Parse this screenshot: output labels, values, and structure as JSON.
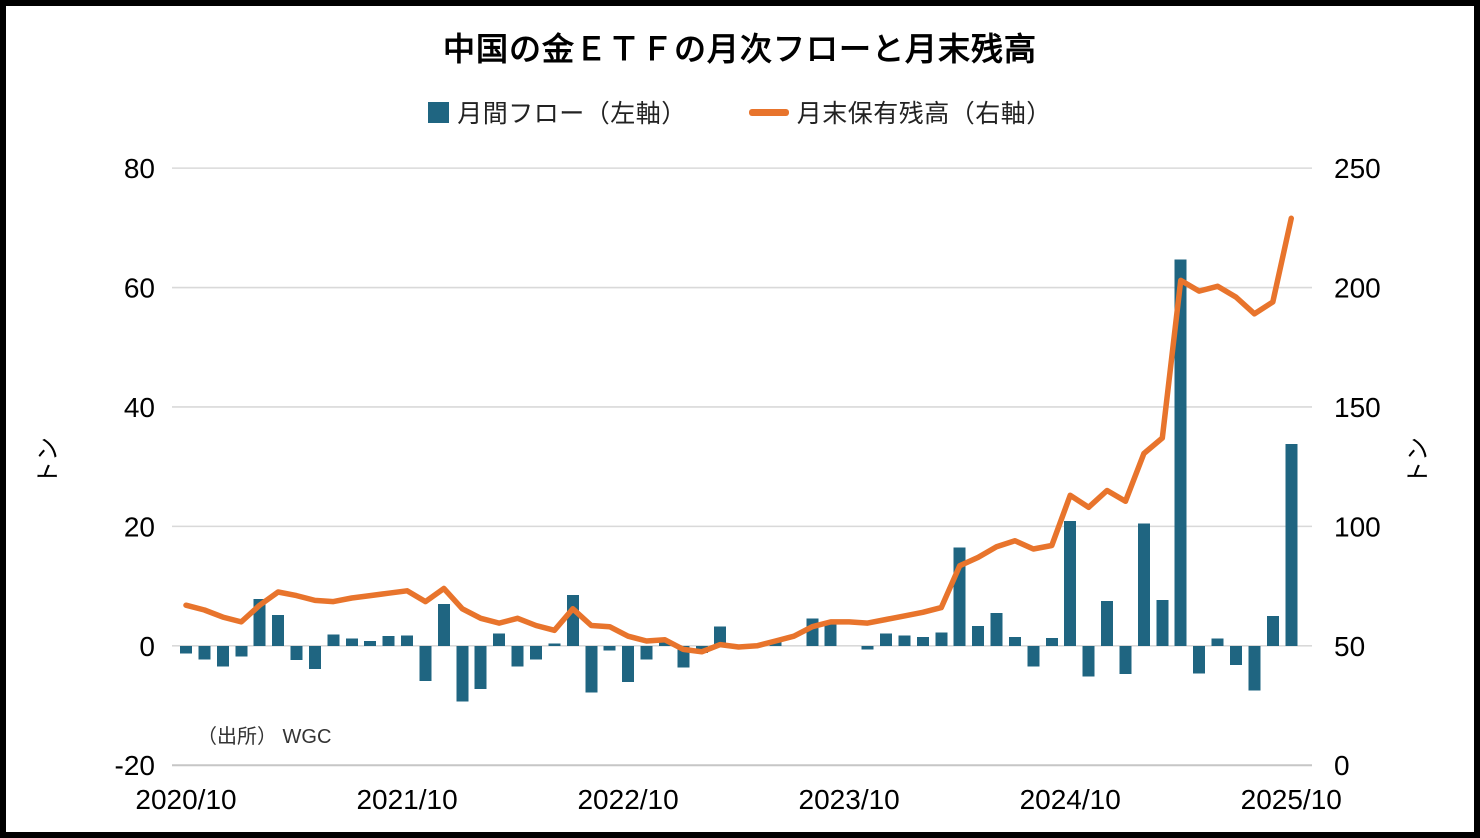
{
  "title": "中国の金ＥＴＦの月次フローと月末残高",
  "legend": {
    "items": [
      {
        "label": "月間フロー（左軸）",
        "marker": "square",
        "color": "#1F6581"
      },
      {
        "label": "月末保有残高（右軸）",
        "marker": "line",
        "color": "#E8742C"
      }
    ]
  },
  "source_note": "（出所） WGC",
  "colors": {
    "bar": "#1F6581",
    "line": "#E8742C",
    "grid": "#D9D9D9",
    "axis_text": "#000000",
    "source_text": "#333333"
  },
  "chart_data": {
    "type": "bar",
    "subtype": "combo-bar-line-dual-axis",
    "title": "中国の金ＥＴＦの月次フローと月末残高",
    "grid": true,
    "legend_position": "top",
    "categories": [
      "2020/10",
      "2020/11",
      "2020/12",
      "2021/1",
      "2021/2",
      "2021/3",
      "2021/4",
      "2021/5",
      "2021/6",
      "2021/7",
      "2021/8",
      "2021/9",
      "2021/10",
      "2021/11",
      "2021/12",
      "2022/1",
      "2022/2",
      "2022/3",
      "2022/4",
      "2022/5",
      "2022/6",
      "2022/7",
      "2022/8",
      "2022/9",
      "2022/10",
      "2022/11",
      "2022/12",
      "2023/1",
      "2023/2",
      "2023/3",
      "2023/4",
      "2023/5",
      "2023/6",
      "2023/7",
      "2023/8",
      "2023/9",
      "2023/10",
      "2023/11",
      "2023/12",
      "2024/1",
      "2024/2",
      "2024/3",
      "2024/4",
      "2024/5",
      "2024/6",
      "2024/7",
      "2024/8",
      "2024/9",
      "2024/10",
      "2024/11",
      "2024/12",
      "2025/1",
      "2025/2",
      "2025/3",
      "2025/4",
      "2025/5",
      "2025/6",
      "2025/7",
      "2025/8",
      "2025/9",
      "2025/10"
    ],
    "series": [
      {
        "name": "月間フロー（左軸）",
        "type": "bar",
        "axis": "left",
        "color": "#1F6581",
        "values": [
          -1.3,
          -2.3,
          -3.5,
          -1.8,
          7.8,
          5.2,
          -2.4,
          -3.9,
          1.9,
          1.2,
          0.8,
          1.6,
          1.7,
          -5.9,
          7.0,
          -9.3,
          -7.2,
          2.1,
          -3.5,
          -2.3,
          0.4,
          8.5,
          -7.8,
          -0.8,
          -6.1,
          -2.3,
          0.7,
          -3.6,
          -1.2,
          3.2,
          -0.4,
          0,
          0.8,
          0,
          4.6,
          3.6,
          0,
          -0.6,
          2.1,
          1.7,
          1.5,
          2.2,
          16.5,
          3.3,
          5.5,
          1.5,
          -3.5,
          1.3,
          20.9,
          -5.1,
          7.5,
          -4.7,
          20.5,
          7.7,
          64.7,
          -4.6,
          1.2,
          -3.2,
          -7.5,
          5.0,
          33.8
        ]
      },
      {
        "name": "月末保有残高（右軸）",
        "type": "line",
        "axis": "right",
        "color": "#E8742C",
        "values": [
          67,
          65,
          62,
          60,
          67,
          72.5,
          71,
          69,
          68.5,
          70,
          71,
          72,
          73,
          68.5,
          74,
          65.5,
          61.5,
          59.5,
          61.5,
          58.5,
          56.5,
          65.5,
          58.5,
          58,
          54,
          52,
          52.5,
          48.5,
          47.5,
          50.5,
          49.5,
          50,
          52,
          54,
          58,
          60,
          60,
          59.5,
          61,
          62.5,
          64,
          66,
          83.5,
          87,
          91.5,
          94,
          90.5,
          92,
          113,
          108,
          115,
          110.5,
          130.5,
          137,
          203,
          198.5,
          200.5,
          196,
          189,
          194,
          229
        ]
      }
    ],
    "left_axis": {
      "title": "トン",
      "ticks": [
        80,
        60,
        40,
        20,
        0,
        -20
      ],
      "min": -20,
      "max": 80
    },
    "right_axis": {
      "title": "トン",
      "ticks": [
        250,
        200,
        150,
        100,
        50,
        0
      ],
      "min": 0,
      "max": 250
    },
    "x_axis": {
      "tick_labels": [
        "2020/10",
        "2021/10",
        "2022/10",
        "2023/10",
        "2024/10",
        "2025/10"
      ],
      "tick_category_indices": [
        0,
        12,
        24,
        36,
        48,
        60
      ]
    }
  }
}
